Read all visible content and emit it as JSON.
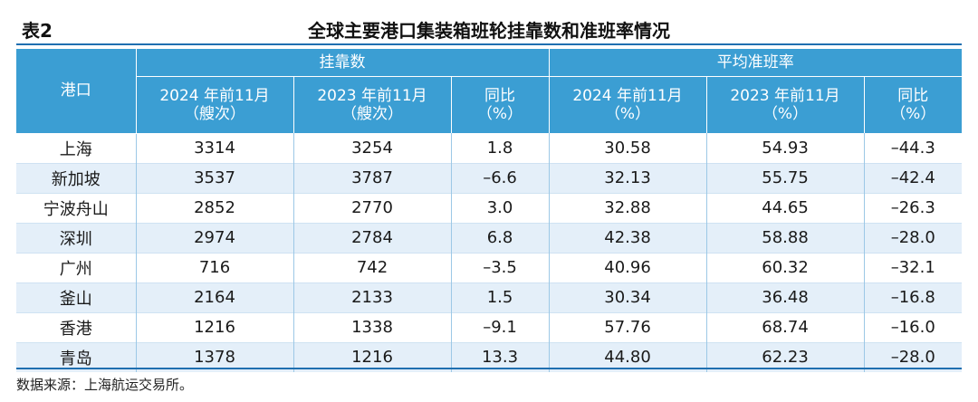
{
  "header": {
    "table_no": "表2",
    "title": "全球主要港口集装箱班轮挂靠数和准班率情况"
  },
  "columns": {
    "port": "港口",
    "group_calls": "挂靠数",
    "group_ontime": "平均准班率",
    "sub": [
      {
        "line1": "2024 年前11月",
        "line2": "（艘次）"
      },
      {
        "line1": "2023 年前11月",
        "line2": "（艘次）"
      },
      {
        "line1": "同比",
        "line2": "（%）"
      },
      {
        "line1": "2024 年前11月",
        "line2": "（%）"
      },
      {
        "line1": "2023 年前11月",
        "line2": "（%）"
      },
      {
        "line1": "同比",
        "line2": "（%）"
      }
    ]
  },
  "rows": [
    {
      "port": "上海",
      "calls_2024": "3314",
      "calls_2023": "3254",
      "calls_yoy": "1.8",
      "ontime_2024": "30.58",
      "ontime_2023": "54.93",
      "ontime_yoy": "–44.3"
    },
    {
      "port": "新加坡",
      "calls_2024": "3537",
      "calls_2023": "3787",
      "calls_yoy": "–6.6",
      "ontime_2024": "32.13",
      "ontime_2023": "55.75",
      "ontime_yoy": "–42.4"
    },
    {
      "port": "宁波舟山",
      "calls_2024": "2852",
      "calls_2023": "2770",
      "calls_yoy": "3.0",
      "ontime_2024": "32.88",
      "ontime_2023": "44.65",
      "ontime_yoy": "–26.3"
    },
    {
      "port": "深圳",
      "calls_2024": "2974",
      "calls_2023": "2784",
      "calls_yoy": "6.8",
      "ontime_2024": "42.38",
      "ontime_2023": "58.88",
      "ontime_yoy": "–28.0"
    },
    {
      "port": "广州",
      "calls_2024": "716",
      "calls_2023": "742",
      "calls_yoy": "–3.5",
      "ontime_2024": "40.96",
      "ontime_2023": "60.32",
      "ontime_yoy": "–32.1"
    },
    {
      "port": "釜山",
      "calls_2024": "2164",
      "calls_2023": "2133",
      "calls_yoy": "1.5",
      "ontime_2024": "30.34",
      "ontime_2023": "36.48",
      "ontime_yoy": "–16.8"
    },
    {
      "port": "香港",
      "calls_2024": "1216",
      "calls_2023": "1338",
      "calls_yoy": "–9.1",
      "ontime_2024": "57.76",
      "ontime_2023": "68.74",
      "ontime_yoy": "–16.0"
    },
    {
      "port": "青岛",
      "calls_2024": "1378",
      "calls_2023": "1216",
      "calls_yoy": "13.3",
      "ontime_2024": "44.80",
      "ontime_2023": "62.23",
      "ontime_yoy": "–28.0"
    }
  ],
  "footer": {
    "source": "数据来源：上海航运交易所。"
  },
  "colors": {
    "header_bg": "#3b9ed3",
    "alt_row_bg": "#e4eff9",
    "rule": "#1f6fb0"
  }
}
